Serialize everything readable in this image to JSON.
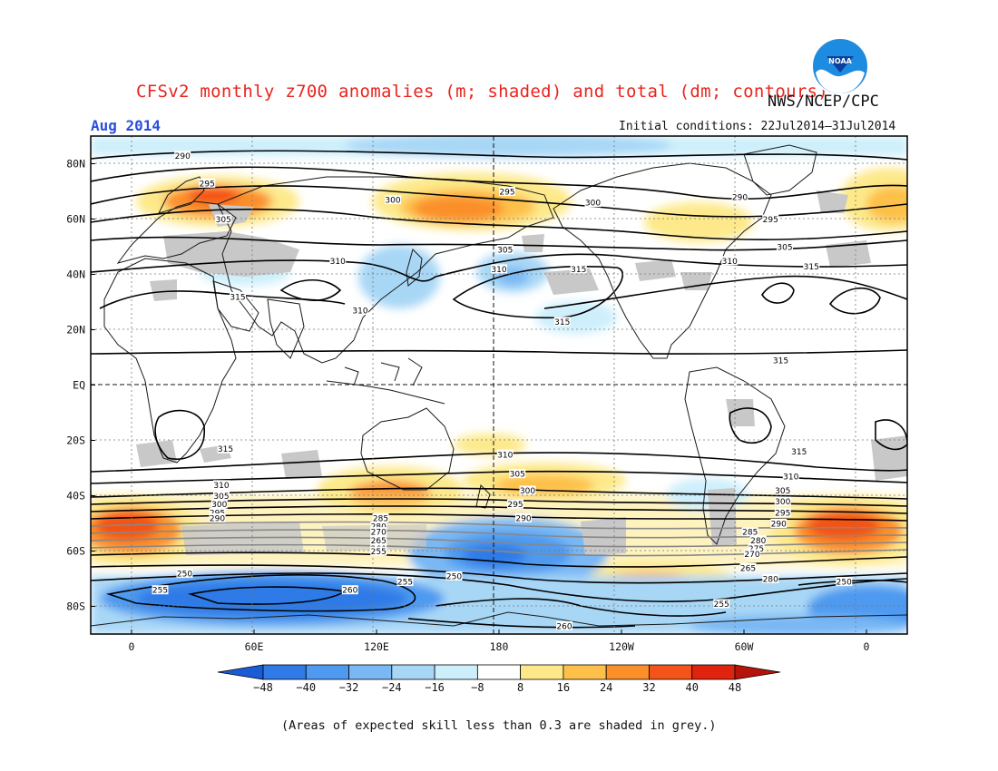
{
  "header": {
    "title": "CFSv2 monthly z700 anomalies (m; shaded) and total (dm; contours)",
    "organization": "NWS/NCEP/CPC",
    "month": "Aug 2014",
    "initial_conditions": "Initial conditions: 22Jul2014–31Jul2014",
    "logo_text": "NOAA"
  },
  "map": {
    "lat_labels": [
      "80N",
      "60N",
      "40N",
      "20N",
      "EQ",
      "20S",
      "40S",
      "60S",
      "80S"
    ],
    "lat_values": [
      80,
      60,
      40,
      20,
      0,
      -20,
      -40,
      -60,
      -80
    ],
    "lon_labels": [
      "0",
      "60E",
      "120E",
      "180",
      "120W",
      "60W",
      "0"
    ],
    "lon_values": [
      0,
      60,
      120,
      180,
      240,
      300,
      360
    ],
    "lon_range": [
      -20,
      380
    ],
    "lat_range": [
      -90,
      90
    ],
    "contour_labels": [
      {
        "text": "290",
        "lon": 25,
        "lat": 83
      },
      {
        "text": "295",
        "lon": 37,
        "lat": 73
      },
      {
        "text": "305",
        "lon": 45,
        "lat": 60
      },
      {
        "text": "300",
        "lon": 128,
        "lat": 67
      },
      {
        "text": "295",
        "lon": 184,
        "lat": 70
      },
      {
        "text": "300",
        "lon": 226,
        "lat": 66
      },
      {
        "text": "290",
        "lon": 298,
        "lat": 68
      },
      {
        "text": "295",
        "lon": 313,
        "lat": 60
      },
      {
        "text": "305",
        "lon": 183,
        "lat": 49
      },
      {
        "text": "305",
        "lon": 320,
        "lat": 50
      },
      {
        "text": "310",
        "lon": 180,
        "lat": 42
      },
      {
        "text": "315",
        "lon": 219,
        "lat": 42
      },
      {
        "text": "310",
        "lon": 101,
        "lat": 45
      },
      {
        "text": "310",
        "lon": 293,
        "lat": 45
      },
      {
        "text": "315",
        "lon": 333,
        "lat": 43
      },
      {
        "text": "315",
        "lon": 52,
        "lat": 32
      },
      {
        "text": "310",
        "lon": 112,
        "lat": 27
      },
      {
        "text": "315",
        "lon": 211,
        "lat": 23
      },
      {
        "text": "315",
        "lon": 318,
        "lat": 9
      },
      {
        "text": "315",
        "lon": 46,
        "lat": -23
      },
      {
        "text": "315",
        "lon": 327,
        "lat": -24
      },
      {
        "text": "310",
        "lon": 183,
        "lat": -25
      },
      {
        "text": "310",
        "lon": 44,
        "lat": -36
      },
      {
        "text": "305",
        "lon": 189,
        "lat": -32
      },
      {
        "text": "310",
        "lon": 323,
        "lat": -33
      },
      {
        "text": "305",
        "lon": 44,
        "lat": -40
      },
      {
        "text": "300",
        "lon": 194,
        "lat": -38
      },
      {
        "text": "305",
        "lon": 319,
        "lat": -38
      },
      {
        "text": "300",
        "lon": 43,
        "lat": -43
      },
      {
        "text": "295",
        "lon": 188,
        "lat": -43
      },
      {
        "text": "300",
        "lon": 319,
        "lat": -42
      },
      {
        "text": "295",
        "lon": 42,
        "lat": -46
      },
      {
        "text": "295",
        "lon": 319,
        "lat": -46
      },
      {
        "text": "290",
        "lon": 42,
        "lat": -48
      },
      {
        "text": "290",
        "lon": 192,
        "lat": -48
      },
      {
        "text": "290",
        "lon": 317,
        "lat": -50
      },
      {
        "text": "285",
        "lon": 122,
        "lat": -48
      },
      {
        "text": "285",
        "lon": 303,
        "lat": -53
      },
      {
        "text": "280",
        "lon": 121,
        "lat": -51
      },
      {
        "text": "280",
        "lon": 307,
        "lat": -56
      },
      {
        "text": "270",
        "lon": 121,
        "lat": -53
      },
      {
        "text": "275",
        "lon": 306,
        "lat": -59
      },
      {
        "text": "265",
        "lon": 121,
        "lat": -56
      },
      {
        "text": "270",
        "lon": 304,
        "lat": -61
      },
      {
        "text": "260",
        "lon": 121,
        "lat": -59
      },
      {
        "text": "265",
        "lon": 302,
        "lat": -66
      },
      {
        "text": "255",
        "lon": 121,
        "lat": -60
      },
      {
        "text": "250",
        "lon": 26,
        "lat": -68
      },
      {
        "text": "280",
        "lon": 313,
        "lat": -70
      },
      {
        "text": "255",
        "lon": 134,
        "lat": -71
      },
      {
        "text": "250",
        "lon": 158,
        "lat": -69
      },
      {
        "text": "250",
        "lon": 349,
        "lat": -71
      },
      {
        "text": "255",
        "lon": 14,
        "lat": -74
      },
      {
        "text": "260",
        "lon": 107,
        "lat": -74
      },
      {
        "text": "255",
        "lon": 289,
        "lat": -79
      },
      {
        "text": "260",
        "lon": 212,
        "lat": -87
      }
    ]
  },
  "colorbar": {
    "labels": [
      "−48",
      "−40",
      "−32",
      "−24",
      "−16",
      "−8",
      "8",
      "16",
      "24",
      "32",
      "40",
      "48"
    ],
    "colors": [
      "#1a5bd6",
      "#2f7ae6",
      "#4d9af0",
      "#79b8f4",
      "#a8d7f6",
      "#cdeffb",
      "#ffffff",
      "#fde98a",
      "#fdc04a",
      "#fb8f2a",
      "#f45319",
      "#e0230f",
      "#b8130a"
    ]
  },
  "footer": {
    "note": "(Areas of expected skill less than 0.3 are shaded in grey.)"
  }
}
